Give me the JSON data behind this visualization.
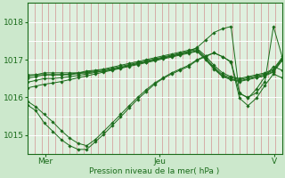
{
  "bg_color": "#cce8cc",
  "plot_bg_color": "#dff0df",
  "line_color": "#1a6b1a",
  "ylim": [
    1014.5,
    1018.5
  ],
  "yticks": [
    1015,
    1016,
    1017,
    1018
  ],
  "xlabel": "Pression niveau de la mer( hPa )",
  "xtick_labels": [
    "Mer",
    "Jeu",
    "V"
  ],
  "xtick_positions": [
    0.07,
    0.52,
    0.97
  ],
  "n_vgrid": 36,
  "lines": [
    [
      1016.55,
      1016.6,
      1016.65,
      1016.65,
      1016.65,
      1016.65,
      1016.65,
      1016.7,
      1016.72,
      1016.75,
      1016.8,
      1016.85,
      1016.9,
      1016.95,
      1017.0,
      1017.05,
      1017.1,
      1017.15,
      1017.2,
      1017.25,
      1017.3,
      1017.1,
      1016.85,
      1016.65,
      1016.55,
      1016.5,
      1016.55,
      1016.6,
      1016.65,
      1016.75,
      1017.05
    ],
    [
      1016.5,
      1016.55,
      1016.6,
      1016.6,
      1016.6,
      1016.62,
      1016.65,
      1016.67,
      1016.7,
      1016.73,
      1016.77,
      1016.82,
      1016.87,
      1016.92,
      1016.97,
      1017.02,
      1017.07,
      1017.12,
      1017.17,
      1017.22,
      1017.27,
      1017.05,
      1016.8,
      1016.6,
      1016.52,
      1016.47,
      1016.52,
      1016.57,
      1016.62,
      1016.72,
      1017.02
    ],
    [
      1016.4,
      1016.45,
      1016.5,
      1016.5,
      1016.52,
      1016.55,
      1016.58,
      1016.62,
      1016.66,
      1016.7,
      1016.74,
      1016.79,
      1016.84,
      1016.89,
      1016.94,
      1016.99,
      1017.04,
      1017.09,
      1017.14,
      1017.19,
      1017.24,
      1017.02,
      1016.77,
      1016.57,
      1016.49,
      1016.44,
      1016.49,
      1016.54,
      1016.59,
      1016.69,
      1016.99
    ],
    [
      1016.25,
      1016.3,
      1016.35,
      1016.38,
      1016.42,
      1016.47,
      1016.52,
      1016.57,
      1016.62,
      1016.67,
      1016.72,
      1016.77,
      1016.82,
      1016.87,
      1016.92,
      1016.97,
      1017.02,
      1017.07,
      1017.12,
      1017.17,
      1017.22,
      1017.0,
      1016.75,
      1016.55,
      1016.47,
      1016.42,
      1016.47,
      1016.52,
      1016.57,
      1016.67,
      1016.97
    ],
    [
      1015.9,
      1015.75,
      1015.55,
      1015.35,
      1015.12,
      1014.92,
      1014.78,
      1014.72,
      1014.88,
      1015.1,
      1015.32,
      1015.55,
      1015.78,
      1016.0,
      1016.2,
      1016.38,
      1016.52,
      1016.65,
      1016.75,
      1016.85,
      1017.0,
      1017.1,
      1017.18,
      1017.08,
      1016.95,
      1016.12,
      1015.98,
      1016.22,
      1016.55,
      1016.82,
      1016.72
    ],
    [
      1016.6,
      1016.6,
      1016.6,
      1016.6,
      1016.6,
      1016.6,
      1016.63,
      1016.65,
      1016.68,
      1016.7,
      1016.74,
      1016.79,
      1016.85,
      1016.9,
      1016.95,
      1017.0,
      1017.05,
      1017.1,
      1017.15,
      1017.22,
      1017.32,
      1017.52,
      1017.72,
      1017.82,
      1017.88,
      1016.1,
      1016.0,
      1016.12,
      1016.42,
      1017.88,
      1017.1
    ],
    [
      1015.8,
      1015.65,
      1015.32,
      1015.1,
      1014.88,
      1014.72,
      1014.62,
      1014.62,
      1014.82,
      1015.02,
      1015.25,
      1015.48,
      1015.72,
      1015.95,
      1016.15,
      1016.35,
      1016.5,
      1016.62,
      1016.72,
      1016.82,
      1016.98,
      1017.08,
      1017.18,
      1017.08,
      1016.93,
      1015.98,
      1015.78,
      1015.98,
      1016.32,
      1016.62,
      1016.52
    ]
  ]
}
